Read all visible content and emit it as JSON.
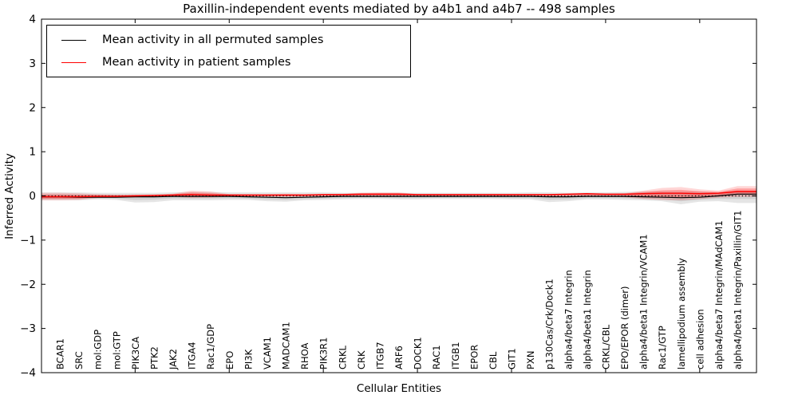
{
  "figure": {
    "title": "Paxillin-independent events mediated by a4b1 and a4b7 -- 498 samples",
    "xlabel": "Cellular Entities",
    "ylabel": "Inferred Activity"
  },
  "legend": {
    "position": "upper left",
    "entries": [
      {
        "label": "Mean activity in all permuted samples",
        "color": "#000000"
      },
      {
        "label": "Mean activity in patient samples",
        "color": "#ff0000"
      }
    ]
  },
  "chart_data": {
    "type": "line",
    "title": "Paxillin-independent events mediated by a4b1 and a4b7 -- 498 samples",
    "xlabel": "Cellular Entities",
    "ylabel": "Inferred Activity",
    "ylim": [
      -4,
      4
    ],
    "yticks": [
      -4,
      -3,
      -2,
      -1,
      0,
      1,
      2,
      3,
      4
    ],
    "xtick_major_indices": [
      4,
      9,
      14,
      19,
      24,
      29,
      34
    ],
    "grid": false,
    "legend_position": "upper left",
    "baseline": {
      "y": 0,
      "style": "dotted",
      "color": "#000000"
    },
    "categories": [
      "BCAR1",
      "SRC",
      "mol:GDP",
      "mol:GTP",
      "PIK3CA",
      "PTK2",
      "JAK2",
      "ITGA4",
      "Rac1/GDP",
      "EPO",
      "PI3K",
      "VCAM1",
      "MADCAM1",
      "RHOA",
      "PIK3R1",
      "CRKL",
      "CRK",
      "ITGB7",
      "ARF6",
      "DOCK1",
      "RAC1",
      "ITGB1",
      "EPOR",
      "CBL",
      "GIT1",
      "PXN",
      "p130Cas/Crk/Dock1",
      "alpha4/beta7 Integrin",
      "alpha4/beta1 Integrin",
      "CRKL/CBL",
      "EPO/EPOR (dimer)",
      "alpha4/beta1 Integrin/VCAM1",
      "Rac1/GTP",
      "lamellipodium assembly",
      "cell adhesion",
      "alpha4/beta7 Integrin/MAdCAM1",
      "alpha4/beta1 Integrin/Paxillin/GIT1"
    ],
    "series": [
      {
        "name": "Mean activity in all permuted samples",
        "color": "#000000",
        "values": [
          -0.02,
          -0.03,
          -0.03,
          -0.03,
          -0.02,
          -0.02,
          -0.01,
          -0.01,
          -0.01,
          -0.01,
          -0.02,
          -0.03,
          -0.04,
          -0.03,
          -0.02,
          -0.01,
          -0.01,
          -0.01,
          -0.01,
          -0.01,
          -0.01,
          -0.01,
          -0.01,
          -0.01,
          -0.01,
          -0.01,
          -0.02,
          -0.02,
          -0.01,
          -0.01,
          -0.01,
          -0.02,
          -0.03,
          -0.04,
          -0.03,
          0.0,
          0.04
        ]
      },
      {
        "name": "Mean activity in patient samples",
        "color": "#ff0000",
        "values": [
          -0.02,
          -0.02,
          -0.01,
          -0.01,
          0.0,
          0.01,
          0.02,
          0.03,
          0.02,
          0.02,
          0.02,
          0.02,
          0.02,
          0.02,
          0.03,
          0.03,
          0.04,
          0.04,
          0.04,
          0.03,
          0.03,
          0.03,
          0.03,
          0.03,
          0.03,
          0.03,
          0.03,
          0.04,
          0.05,
          0.04,
          0.04,
          0.05,
          0.06,
          0.06,
          0.05,
          0.06,
          0.1
        ]
      }
    ],
    "bands": [
      {
        "name": "permuted-samples-range",
        "color": "rgba(0,0,0,0.10)",
        "inner_color": "rgba(0,0,0,0.09)",
        "upper": [
          0.08,
          0.08,
          0.07,
          0.07,
          0.07,
          0.07,
          0.08,
          0.09,
          0.09,
          0.08,
          0.08,
          0.08,
          0.08,
          0.08,
          0.08,
          0.07,
          0.07,
          0.07,
          0.07,
          0.07,
          0.07,
          0.07,
          0.07,
          0.07,
          0.07,
          0.08,
          0.08,
          0.07,
          0.08,
          0.08,
          0.09,
          0.1,
          0.1,
          0.1,
          0.1,
          0.08,
          0.12
        ],
        "lower": [
          -0.1,
          -0.1,
          -0.08,
          -0.09,
          -0.15,
          -0.14,
          -0.1,
          -0.1,
          -0.1,
          -0.09,
          -0.09,
          -0.12,
          -0.13,
          -0.1,
          -0.09,
          -0.08,
          -0.07,
          -0.07,
          -0.08,
          -0.08,
          -0.07,
          -0.07,
          -0.07,
          -0.07,
          -0.08,
          -0.08,
          -0.14,
          -0.12,
          -0.08,
          -0.08,
          -0.09,
          -0.1,
          -0.12,
          -0.19,
          -0.13,
          -0.12,
          -0.16
        ]
      },
      {
        "name": "patient-samples-range",
        "color": "rgba(255,0,0,0.16)",
        "inner_color": "rgba(255,0,0,0.26)",
        "upper": [
          0.07,
          0.06,
          0.04,
          0.03,
          0.03,
          0.03,
          0.05,
          0.12,
          0.1,
          0.04,
          0.04,
          0.04,
          0.05,
          0.04,
          0.04,
          0.05,
          0.07,
          0.08,
          0.08,
          0.04,
          0.03,
          0.03,
          0.03,
          0.03,
          0.03,
          0.03,
          0.04,
          0.05,
          0.06,
          0.05,
          0.06,
          0.12,
          0.18,
          0.2,
          0.15,
          0.12,
          0.22
        ],
        "lower": [
          -0.1,
          -0.09,
          -0.05,
          -0.04,
          -0.03,
          -0.02,
          -0.02,
          -0.05,
          -0.04,
          -0.02,
          -0.02,
          -0.02,
          -0.02,
          -0.02,
          -0.01,
          -0.01,
          -0.02,
          -0.02,
          -0.02,
          -0.01,
          -0.01,
          -0.01,
          -0.01,
          -0.01,
          -0.01,
          -0.01,
          -0.02,
          -0.02,
          -0.02,
          -0.02,
          -0.03,
          -0.07,
          -0.09,
          -0.1,
          -0.07,
          -0.04,
          -0.02
        ]
      }
    ]
  }
}
